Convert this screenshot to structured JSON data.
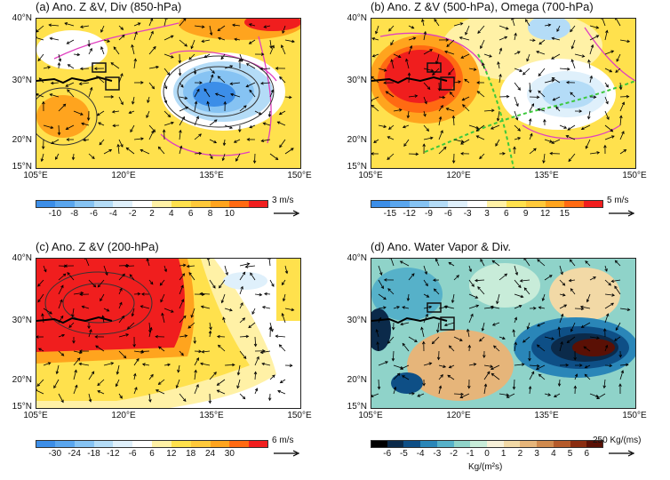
{
  "panels": [
    {
      "title": "(a) Ano. Z &V, Div (850-hPa)",
      "lat_labels": [
        "40°N",
        "30°N",
        "20°N",
        "15°N"
      ],
      "lon_labels": [
        "105°E",
        "120°E",
        "135°E",
        "150°E"
      ],
      "colorbar": {
        "ticks": [
          "-10",
          "-8",
          "-6",
          "-4",
          "-2",
          "2",
          "4",
          "6",
          "8",
          "10"
        ],
        "colors": [
          "#3c8ee8",
          "#5aa6ee",
          "#86c3f3",
          "#b4dcf7",
          "#dff0fb",
          "#ffffff",
          "#fff1a6",
          "#ffe14d",
          "#ffc93a",
          "#ffa41e",
          "#ff6a12",
          "#f01e1e"
        ]
      },
      "reference_vector": "3 m/s"
    },
    {
      "title": "(b) Ano. Z &V (500-hPa), Omega (700-hPa)",
      "lat_labels": [
        "40°N",
        "30°N",
        "20°N",
        "15°N"
      ],
      "lon_labels": [
        "105°E",
        "120°E",
        "135°E",
        "150°E"
      ],
      "colorbar": {
        "ticks": [
          "-15",
          "-12",
          "-9",
          "-6",
          "-3",
          "3",
          "6",
          "9",
          "12",
          "15"
        ],
        "colors": [
          "#3c8ee8",
          "#5aa6ee",
          "#86c3f3",
          "#b4dcf7",
          "#dff0fb",
          "#ffffff",
          "#fff1a6",
          "#ffe14d",
          "#ffc93a",
          "#ffa41e",
          "#ff6a12",
          "#f01e1e"
        ]
      },
      "reference_vector": "5 m/s"
    },
    {
      "title": "(c) Ano. Z &V (200-hPa)",
      "lat_labels": [
        "40°N",
        "30°N",
        "20°N",
        "15°N"
      ],
      "lon_labels": [
        "105°E",
        "120°E",
        "135°E",
        "150°E"
      ],
      "colorbar": {
        "ticks": [
          "-30",
          "-24",
          "-18",
          "-12",
          "-6",
          "6",
          "12",
          "18",
          "24",
          "30"
        ],
        "colors": [
          "#3c8ee8",
          "#5aa6ee",
          "#86c3f3",
          "#b4dcf7",
          "#dff0fb",
          "#ffffff",
          "#fff1a6",
          "#ffe14d",
          "#ffc93a",
          "#ffa41e",
          "#ff6a12",
          "#f01e1e"
        ]
      },
      "reference_vector": "6 m/s"
    },
    {
      "title": "(d) Ano. Water Vapor & Div.",
      "lat_labels": [
        "40°N",
        "30°N",
        "20°N",
        "15°N"
      ],
      "lon_labels": [
        "105°E",
        "120°E",
        "135°E",
        "150°E"
      ],
      "colorbar": {
        "ticks": [
          "-6",
          "-5",
          "-4",
          "-3",
          "-2",
          "-1",
          "0",
          "1",
          "2",
          "3",
          "4",
          "5",
          "6"
        ],
        "colors": [
          "#000000",
          "#0b2a4a",
          "#0e4f86",
          "#2a86b8",
          "#56b1c9",
          "#8fd3c9",
          "#c8ecd9",
          "#f7f0d8",
          "#f2d9a6",
          "#e6b57a",
          "#d08a4e",
          "#b55a2a",
          "#8a2c10",
          "#5a1005"
        ]
      },
      "reference_vector": "250 Kg/(ms)",
      "units_label": "Kg/(m²s)"
    }
  ],
  "colors": {
    "contour_pink": "#e040c0",
    "contour_green": "#3cc83c",
    "box": "#111111"
  }
}
